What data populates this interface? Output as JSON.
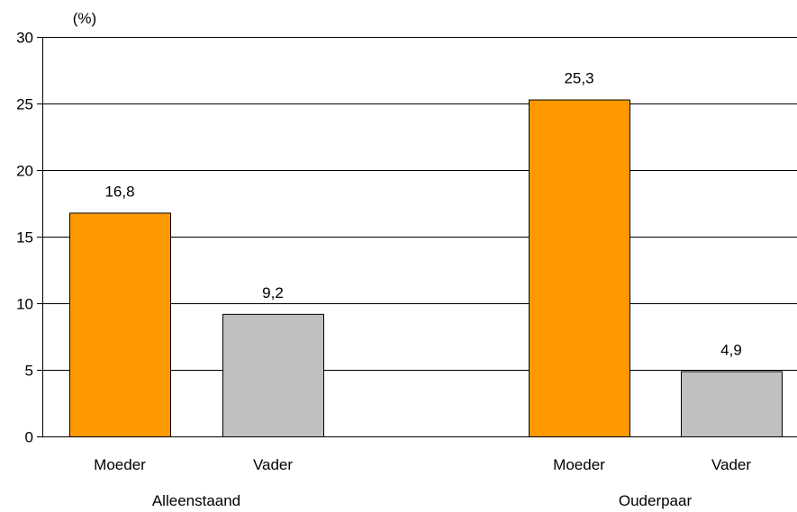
{
  "chart_data": {
    "type": "bar",
    "unit_label": "(%)",
    "groups": [
      {
        "name": "Alleenstaand",
        "bars": [
          {
            "label": "Moeder",
            "value": 16.8,
            "display": "16,8",
            "color": "#ff9900"
          },
          {
            "label": "Vader",
            "value": 9.2,
            "display": "9,2",
            "color": "#c0c0c0"
          }
        ]
      },
      {
        "name": "Ouderpaar",
        "bars": [
          {
            "label": "Moeder",
            "value": 25.3,
            "display": "25,3",
            "color": "#ff9900"
          },
          {
            "label": "Vader",
            "value": 4.9,
            "display": "4,9",
            "color": "#c0c0c0"
          }
        ]
      }
    ],
    "ylim": [
      0,
      30
    ],
    "yticks": [
      0,
      5,
      10,
      15,
      20,
      25,
      30
    ],
    "grid": true,
    "legend": "none",
    "title": "",
    "xlabel": "",
    "ylabel": ""
  }
}
